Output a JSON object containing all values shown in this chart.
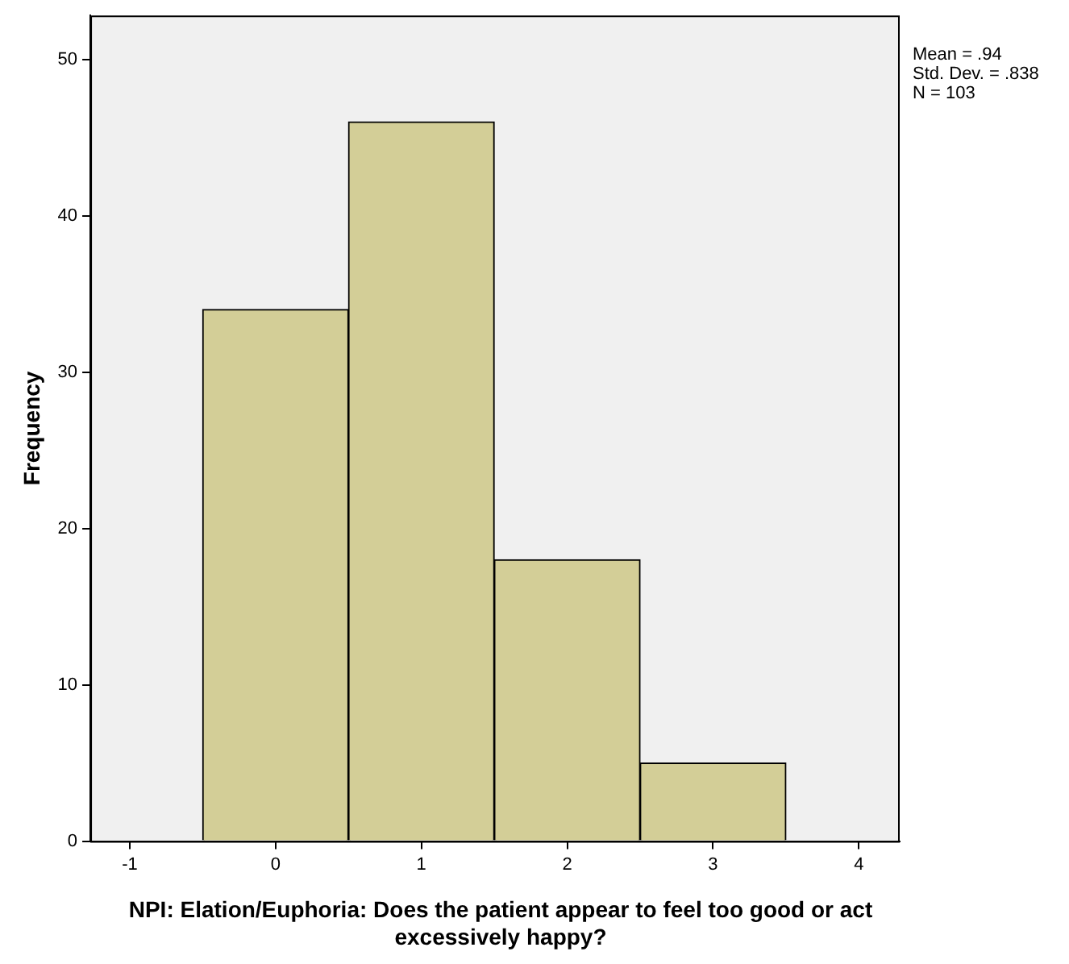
{
  "chart_data": {
    "type": "histogram",
    "xlabel": "NPI: Elation/Euphoria: Does the patient appear to feel too good or act excessively happy?",
    "ylabel": "Frequency",
    "bins": [
      -0.5,
      0.5,
      1.5,
      2.5,
      3.5
    ],
    "values": [
      34,
      46,
      18,
      5
    ],
    "color": "#d3ce97",
    "xlim": [
      -1.27,
      4.28
    ],
    "xticks": [
      -1,
      0,
      1,
      2,
      3,
      4
    ],
    "ylim": [
      0,
      52.8
    ],
    "yticks": [
      0,
      10,
      20,
      30,
      40,
      50
    ],
    "grid": false,
    "legend": false,
    "annotations": [
      "Mean = .94",
      "Std. Dev. = .838",
      "N = 103"
    ]
  }
}
